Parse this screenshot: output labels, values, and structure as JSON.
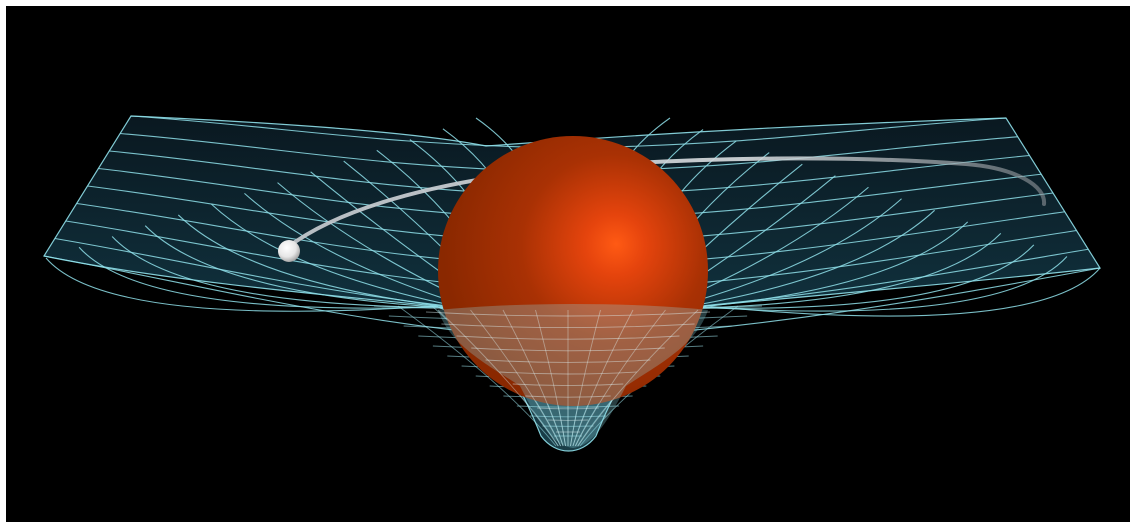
{
  "image": {
    "description_tags": [
      "spacetime-curvature-grid",
      "central-massive-sphere",
      "orbiting-planet",
      "orbit-trail"
    ],
    "colors": {
      "background": "#000000",
      "frame": "#ffffff",
      "grid_line": "#8fe0ea",
      "sheet_fill": "#0f2430",
      "sphere_highlight": "#ff5a14",
      "sphere_base": "#9a2c00",
      "planet": "#ffffff",
      "orbit": "#cfd3d8"
    }
  }
}
